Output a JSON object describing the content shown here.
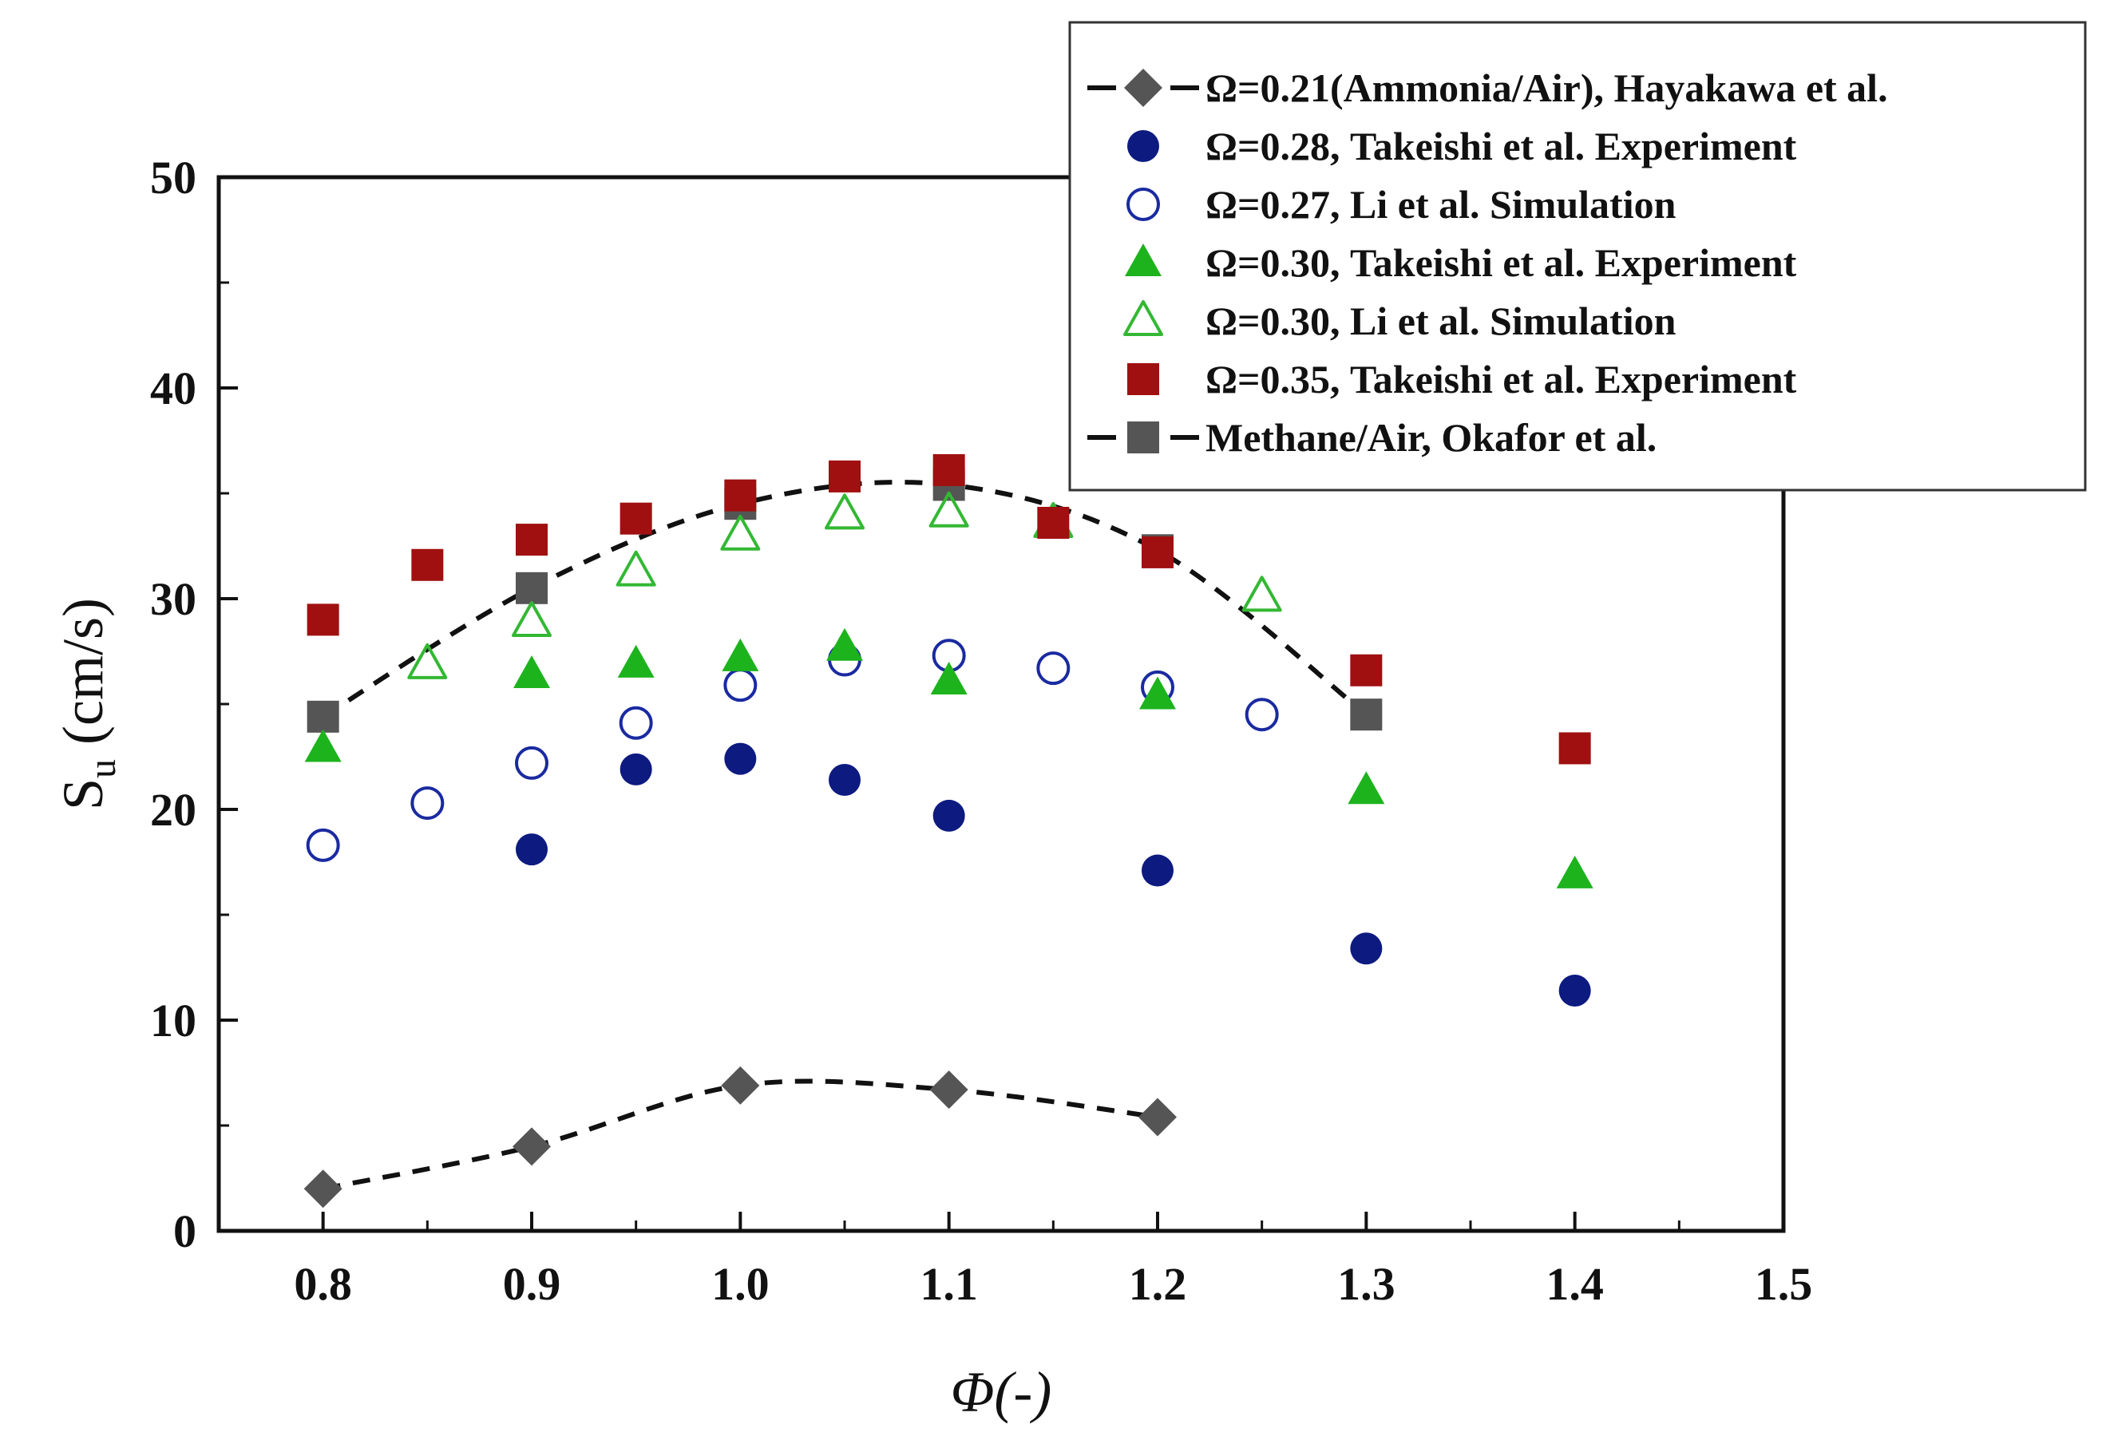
{
  "chart_data": {
    "type": "scatter",
    "xlabel": "Φ(-)",
    "ylabel_main": "S",
    "ylabel_sub": "u",
    "ylabel_unit": " (cm/s)",
    "xlim": [
      0.75,
      1.5
    ],
    "ylim": [
      0,
      50
    ],
    "xticks": [
      "0.8",
      "0.9",
      "1.0",
      "1.1",
      "1.2",
      "1.3",
      "1.4",
      "1.5"
    ],
    "xtick_values": [
      0.8,
      0.9,
      1.0,
      1.1,
      1.2,
      1.3,
      1.4,
      1.5
    ],
    "yticks": [
      "0",
      "10",
      "20",
      "30",
      "40",
      "50"
    ],
    "ytick_values": [
      0,
      10,
      20,
      30,
      40,
      50
    ],
    "grid": false,
    "legend_position": "top-right",
    "series": [
      {
        "name": "Ω=0.21(Ammonia/Air), Hayakawa et al.",
        "marker": "diamond",
        "filled": true,
        "line": "dashed",
        "color": "#555555",
        "x": [
          0.8,
          0.9,
          1.0,
          1.1,
          1.2
        ],
        "y": [
          2.0,
          4.0,
          6.9,
          6.7,
          5.4
        ]
      },
      {
        "name": "Ω=0.28, Takeishi et al. Experiment",
        "marker": "circle",
        "filled": true,
        "line": "none",
        "color": "#0d1a80",
        "x": [
          0.9,
          0.95,
          1.0,
          1.05,
          1.1,
          1.2,
          1.3,
          1.4
        ],
        "y": [
          18.1,
          21.9,
          22.4,
          21.4,
          19.7,
          17.1,
          13.4,
          11.4
        ]
      },
      {
        "name": "Ω=0.27, Li et al. Simulation",
        "marker": "circle",
        "filled": false,
        "line": "none",
        "color": "#1a2aa0",
        "x": [
          0.8,
          0.85,
          0.9,
          0.95,
          1.0,
          1.05,
          1.1,
          1.15,
          1.2,
          1.25
        ],
        "y": [
          18.3,
          20.3,
          22.2,
          24.1,
          25.9,
          27.1,
          27.3,
          26.7,
          25.8,
          24.5
        ]
      },
      {
        "name": "Ω=0.30, Takeishi et al. Experiment",
        "marker": "triangle",
        "filled": true,
        "line": "none",
        "color": "#1db31d",
        "x": [
          0.8,
          0.9,
          0.95,
          1.0,
          1.05,
          1.1,
          1.2,
          1.3,
          1.4
        ],
        "y": [
          22.9,
          26.4,
          26.9,
          27.2,
          27.7,
          26.1,
          25.4,
          20.9,
          16.9
        ]
      },
      {
        "name": "Ω=0.30, Li et al. Simulation",
        "marker": "triangle",
        "filled": false,
        "line": "none",
        "color": "#33b833",
        "x": [
          0.85,
          0.9,
          0.95,
          1.0,
          1.05,
          1.1,
          1.15,
          1.25
        ],
        "y": [
          26.9,
          28.9,
          31.3,
          33.0,
          34.0,
          34.1,
          33.6,
          30.1
        ]
      },
      {
        "name": "Ω=0.35, Takeishi et al. Experiment",
        "marker": "square",
        "filled": true,
        "line": "none",
        "color": "#a01010",
        "x": [
          0.8,
          0.85,
          0.9,
          0.95,
          1.0,
          1.05,
          1.1,
          1.15,
          1.2,
          1.3,
          1.4
        ],
        "y": [
          29.0,
          31.6,
          32.8,
          33.8,
          34.9,
          35.8,
          36.1,
          33.6,
          32.2,
          26.6,
          22.9
        ]
      },
      {
        "name": "Methane/Air, Okafor et al.",
        "marker": "square",
        "filled": true,
        "line": "dashed",
        "color": "#555555",
        "x": [
          0.8,
          0.9,
          1.0,
          1.1,
          1.2,
          1.3
        ],
        "y": [
          24.4,
          30.5,
          34.5,
          35.4,
          32.3,
          24.5
        ]
      }
    ]
  }
}
